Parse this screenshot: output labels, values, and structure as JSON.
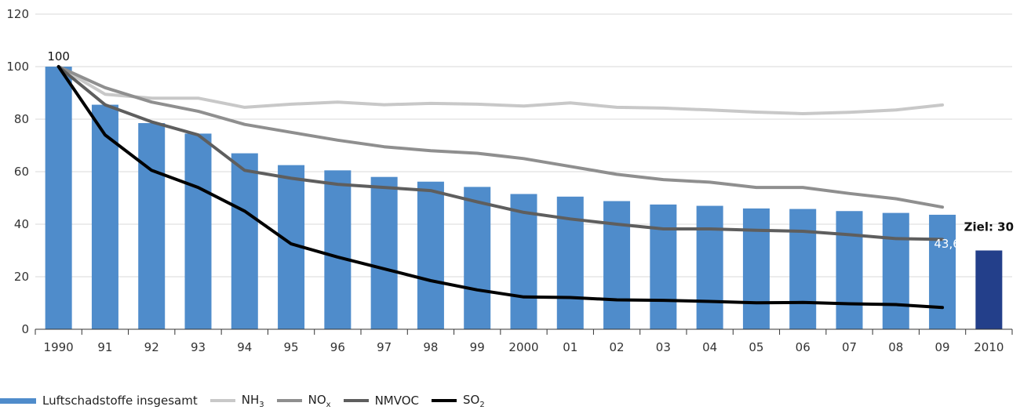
{
  "chart_data": {
    "type": "bar",
    "categories": [
      "1990",
      "91",
      "92",
      "93",
      "94",
      "95",
      "96",
      "97",
      "98",
      "99",
      "2000",
      "01",
      "02",
      "03",
      "04",
      "05",
      "06",
      "07",
      "08",
      "09",
      "2010"
    ],
    "ylim": [
      0,
      120
    ],
    "yticks": [
      0,
      20,
      40,
      60,
      80,
      100,
      120
    ],
    "grid": true,
    "legend_position": "bottom-left",
    "bars": {
      "name": "Luftschadstoffe insgesamt",
      "color": "#4f8ccb",
      "values": [
        100,
        85.5,
        78.5,
        74.5,
        67,
        62.5,
        60.5,
        58,
        56.2,
        54.2,
        51.5,
        50.5,
        48.8,
        47.5,
        47,
        46,
        45.8,
        45,
        44.3,
        43.6,
        null
      ]
    },
    "target_bar": {
      "category": "2010",
      "value": 30,
      "color": "#233f8a"
    },
    "series": [
      {
        "name": "NH",
        "sub": "3",
        "color": "#c8c8c8",
        "width": 4,
        "values": [
          100,
          89.5,
          88,
          88,
          84.5,
          85.7,
          86.5,
          85.5,
          86,
          85.7,
          85,
          86.2,
          84.5,
          84.2,
          83.5,
          82.7,
          82.1,
          82.6,
          83.5,
          85.4,
          null
        ]
      },
      {
        "name": "NO",
        "sub": "x",
        "color": "#8f8f8f",
        "width": 4,
        "values": [
          100,
          92,
          86.5,
          83,
          78,
          75,
          72,
          69.5,
          68,
          67,
          65,
          62,
          59,
          57,
          56,
          54,
          54,
          51.7,
          49.7,
          46.5,
          null
        ]
      },
      {
        "name": "NMVOC",
        "sub": "",
        "color": "#5e5e5e",
        "width": 4,
        "values": [
          100,
          85.5,
          79,
          74,
          60.5,
          57.5,
          55.2,
          54,
          52.8,
          48.5,
          44.5,
          42,
          40,
          38.2,
          38.2,
          37.7,
          37.3,
          36,
          34.5,
          34.2,
          null
        ]
      },
      {
        "name": "SO",
        "sub": "2",
        "color": "#000000",
        "width": 4,
        "values": [
          100,
          74,
          60.5,
          54,
          45,
          32.5,
          27.5,
          23,
          18.5,
          15,
          12.3,
          12.1,
          11.2,
          11,
          10.6,
          10.1,
          10.2,
          9.7,
          9.4,
          8.3,
          null
        ]
      }
    ],
    "annotations": {
      "start_label": "100",
      "end_label": "43,6",
      "target_label": "Ziel: 30"
    }
  }
}
